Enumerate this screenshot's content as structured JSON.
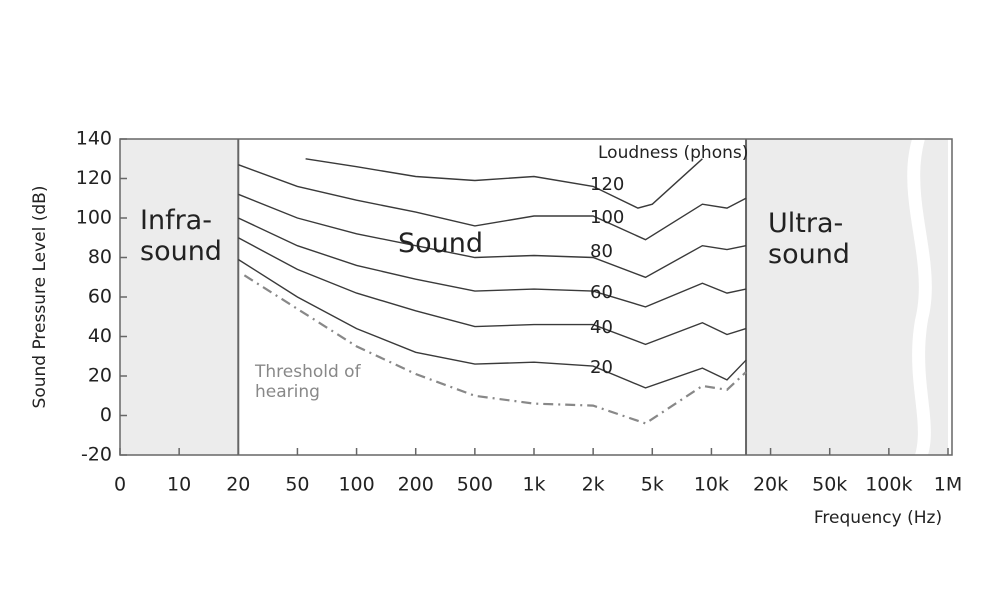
{
  "chart_data": {
    "type": "line",
    "xlabel": "Frequency (Hz)",
    "ylabel": "Sound Pressure Level (dB)",
    "annotation": "Loudness (phons)",
    "ylim": [
      -20,
      140
    ],
    "yticks": [
      -20,
      0,
      20,
      40,
      60,
      80,
      100,
      120,
      140
    ],
    "xticks": [
      0,
      10,
      20,
      50,
      100,
      200,
      500,
      {
        "value": 1000,
        "label": "1k"
      },
      {
        "value": 2000,
        "label": "2k"
      },
      {
        "value": 5000,
        "label": "5k"
      },
      {
        "value": 10000,
        "label": "10k"
      },
      {
        "value": 20000,
        "label": "20k"
      },
      {
        "value": 50000,
        "label": "50k"
      },
      {
        "value": 100000,
        "label": "100k"
      },
      {
        "value": 1000000,
        "label": "1M"
      }
    ],
    "regions": [
      {
        "label": "Infra-sound",
        "start": 0,
        "end": 20,
        "color": "#ececec"
      },
      {
        "label": "Sound",
        "start": 20,
        "end": 15000,
        "color": "#ffffff"
      },
      {
        "label": "Ultra-sound",
        "start": 15000,
        "end": 1000000,
        "color": "#ececec"
      }
    ],
    "series": [
      {
        "name": "120",
        "color": "#3a3a3a",
        "x": [
          55,
          100,
          200,
          500,
          1000,
          2000,
          4000,
          5000,
          9000
        ],
        "values": [
          130,
          126,
          121,
          119,
          121,
          116,
          105,
          107,
          130
        ]
      },
      {
        "name": "100",
        "color": "#3a3a3a",
        "x": [
          20,
          50,
          100,
          200,
          500,
          1000,
          2000,
          4500,
          9000,
          12000,
          15000
        ],
        "values": [
          127,
          116,
          109,
          103,
          96,
          101,
          101,
          89,
          107,
          105,
          110
        ]
      },
      {
        "name": "80",
        "color": "#3a3a3a",
        "x": [
          20,
          50,
          100,
          200,
          500,
          1000,
          2000,
          4500,
          9000,
          12000,
          15000
        ],
        "values": [
          112,
          100,
          92,
          86,
          80,
          81,
          80,
          70,
          86,
          84,
          86
        ]
      },
      {
        "name": "60",
        "color": "#3a3a3a",
        "x": [
          20,
          50,
          100,
          200,
          500,
          1000,
          2000,
          4500,
          9000,
          12000,
          15000
        ],
        "values": [
          100,
          86,
          76,
          69,
          63,
          64,
          63,
          55,
          67,
          62,
          64
        ]
      },
      {
        "name": "40",
        "color": "#3a3a3a",
        "x": [
          20,
          50,
          100,
          200,
          500,
          1000,
          2000,
          4500,
          9000,
          12000,
          15000
        ],
        "values": [
          90,
          74,
          62,
          53,
          45,
          46,
          46,
          36,
          47,
          41,
          44
        ]
      },
      {
        "name": "20",
        "color": "#3a3a3a",
        "x": [
          20,
          50,
          100,
          200,
          500,
          1000,
          2000,
          4500,
          9000,
          12000,
          15000
        ],
        "values": [
          79,
          60,
          44,
          32,
          26,
          27,
          25,
          14,
          24,
          18,
          28
        ]
      },
      {
        "name": "Threshold of hearing",
        "color": "#888888",
        "dashed": true,
        "x": [
          22,
          50,
          100,
          200,
          500,
          1000,
          2000,
          4500,
          9000,
          12000,
          15000
        ],
        "values": [
          71,
          54,
          35,
          21,
          10,
          6,
          5,
          -4,
          15,
          13,
          22
        ]
      }
    ]
  }
}
